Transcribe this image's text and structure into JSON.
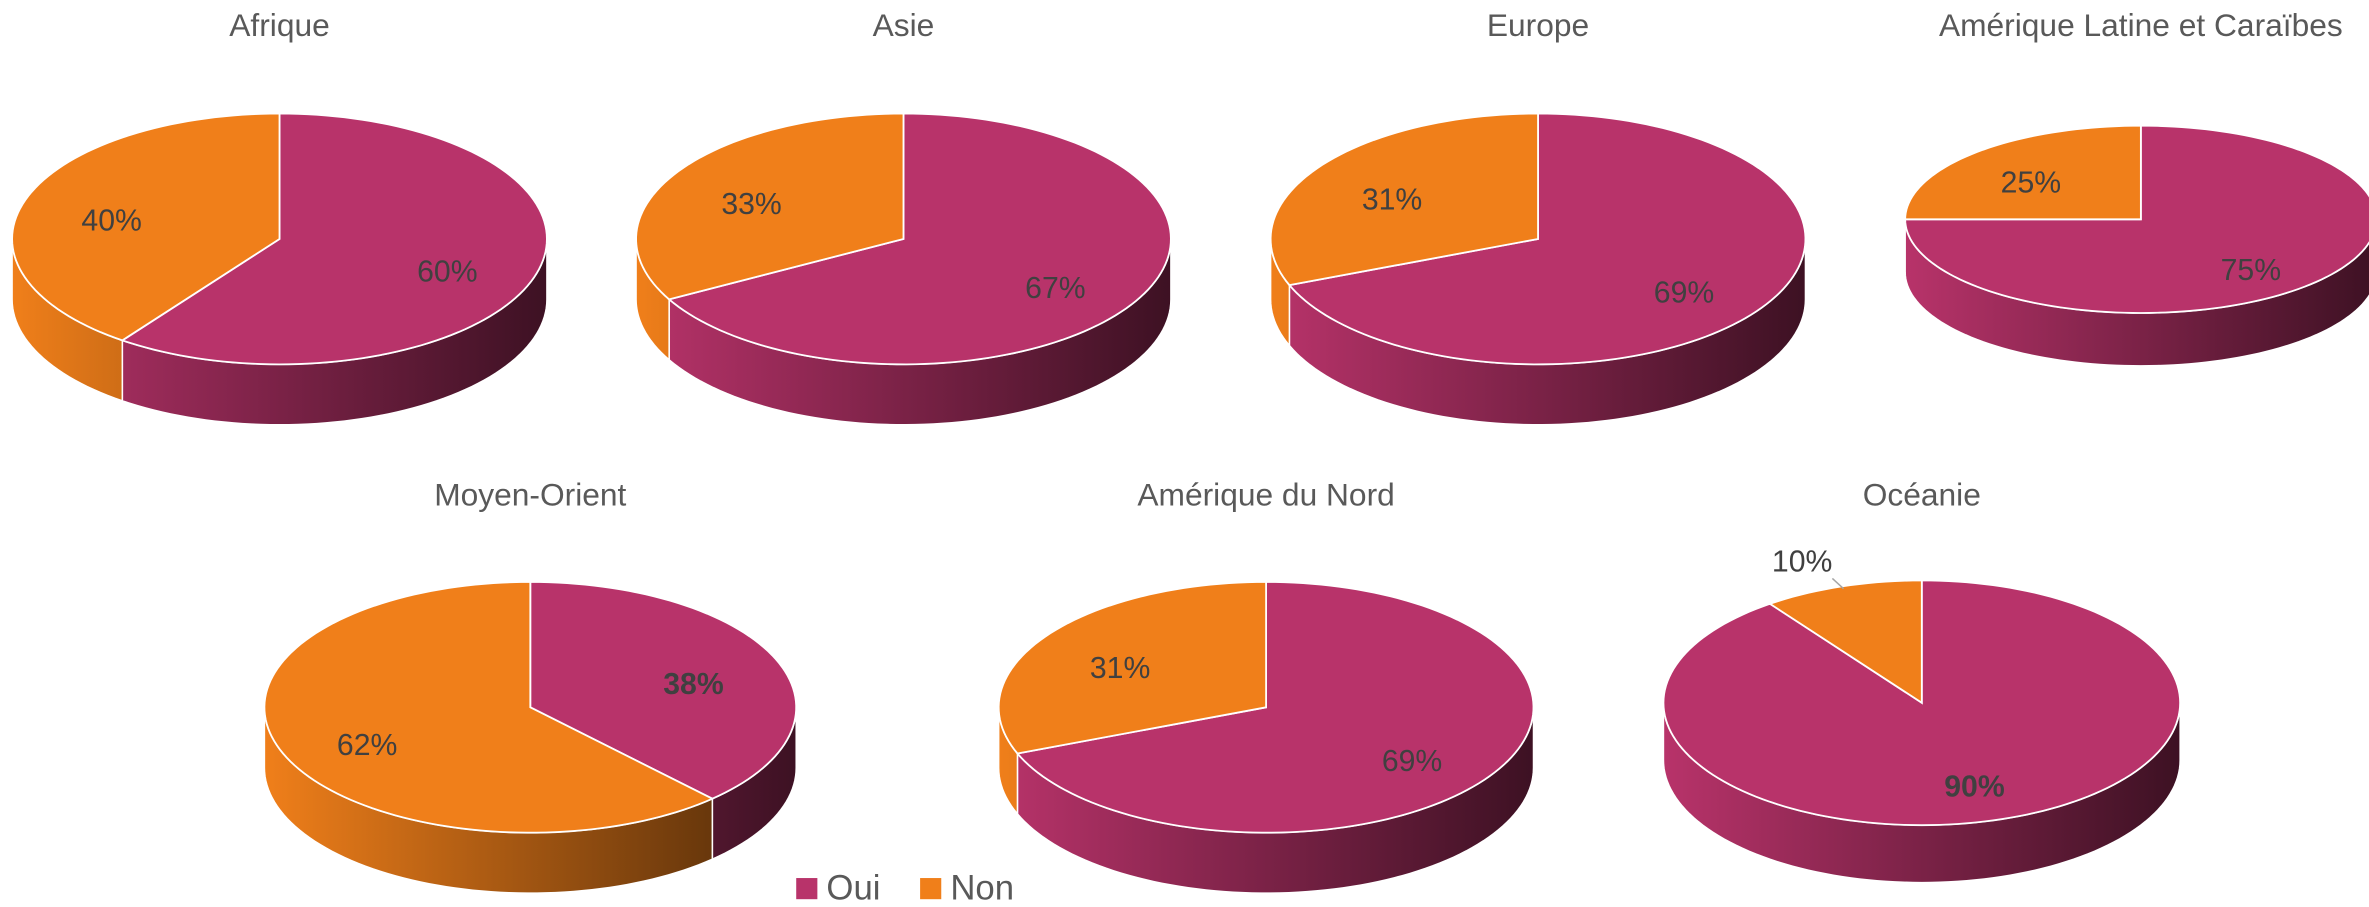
{
  "chart_data": [
    {
      "type": "pie",
      "title": "Afrique",
      "categories": [
        "Oui",
        "Non"
      ],
      "values": [
        60,
        40
      ],
      "value_labels": [
        "60%",
        "40%"
      ],
      "colors": [
        "#b8336a",
        "#f07f1a"
      ]
    },
    {
      "type": "pie",
      "title": "Asie",
      "categories": [
        "Oui",
        "Non"
      ],
      "values": [
        67,
        33
      ],
      "value_labels": [
        "67%",
        "33%"
      ],
      "colors": [
        "#b8336a",
        "#f07f1a"
      ]
    },
    {
      "type": "pie",
      "title": "Europe",
      "categories": [
        "Oui",
        "Non"
      ],
      "values": [
        69,
        31
      ],
      "value_labels": [
        "69%",
        "31%"
      ],
      "colors": [
        "#b8336a",
        "#f07f1a"
      ]
    },
    {
      "type": "pie",
      "title": "Amérique Latine et Caraïbes",
      "categories": [
        "Oui",
        "Non"
      ],
      "values": [
        75,
        25
      ],
      "value_labels": [
        "75%",
        "25%"
      ],
      "colors": [
        "#b8336a",
        "#f07f1a"
      ]
    },
    {
      "type": "pie",
      "title": "Moyen-Orient",
      "categories": [
        "Oui",
        "Non"
      ],
      "values": [
        38,
        62
      ],
      "value_labels": [
        "38%",
        "62%"
      ],
      "colors": [
        "#b8336a",
        "#f07f1a"
      ],
      "bold_labels": [
        true,
        false
      ]
    },
    {
      "type": "pie",
      "title": "Amérique du Nord",
      "categories": [
        "Oui",
        "Non"
      ],
      "values": [
        69,
        31
      ],
      "value_labels": [
        "69%",
        "31%"
      ],
      "colors": [
        "#b8336a",
        "#f07f1a"
      ]
    },
    {
      "type": "pie",
      "title": "Océanie",
      "categories": [
        "Oui",
        "Non"
      ],
      "values": [
        90,
        10
      ],
      "value_labels": [
        "90%",
        "10%"
      ],
      "colors": [
        "#b8336a",
        "#f07f1a"
      ],
      "bold_labels": [
        true,
        false
      ]
    }
  ]
}
